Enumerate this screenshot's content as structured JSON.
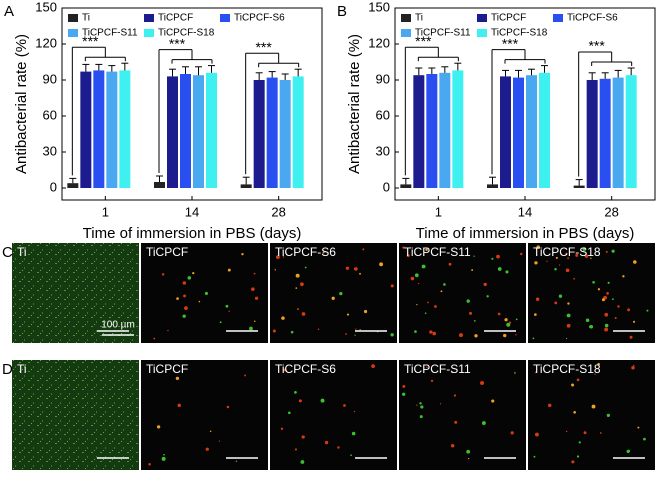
{
  "chart_data": [
    {
      "type": "bar",
      "panel": "A",
      "ylabel": "Antibacterial rate (%)",
      "xlabel": "Time of immersion in PBS (days)",
      "categories": [
        "1",
        "14",
        "28"
      ],
      "ylim": [
        -10,
        150
      ],
      "yticks": [
        0,
        30,
        60,
        90,
        120,
        150
      ],
      "legend": "top",
      "annotations": [
        "***",
        "***",
        "***"
      ],
      "series": [
        {
          "name": "Ti",
          "color": "#222222",
          "values": [
            4,
            5,
            3
          ],
          "errors": [
            4,
            5,
            6
          ]
        },
        {
          "name": "TiCPCF",
          "color": "#1c1c8e",
          "values": [
            97,
            93,
            90
          ],
          "errors": [
            6,
            6,
            6
          ]
        },
        {
          "name": "TiCPCF-S6",
          "color": "#2a4ff0",
          "values": [
            98,
            95,
            92
          ],
          "errors": [
            5,
            6,
            5
          ]
        },
        {
          "name": "TiCPCF-S11",
          "color": "#4aa8f0",
          "values": [
            97,
            94,
            90
          ],
          "errors": [
            5,
            7,
            5
          ]
        },
        {
          "name": "TiCPCF-S18",
          "color": "#3ef0f0",
          "values": [
            98,
            96,
            93
          ],
          "errors": [
            6,
            6,
            6
          ]
        }
      ]
    },
    {
      "type": "bar",
      "panel": "B",
      "ylabel": "Antibacterial rate (%)",
      "xlabel": "Time of immersion in PBS (days)",
      "categories": [
        "1",
        "14",
        "28"
      ],
      "ylim": [
        -10,
        150
      ],
      "yticks": [
        0,
        30,
        60,
        90,
        120,
        150
      ],
      "legend": "top",
      "annotations": [
        "***",
        "***",
        "***"
      ],
      "series": [
        {
          "name": "Ti",
          "color": "#222222",
          "values": [
            3,
            3,
            2
          ],
          "errors": [
            5,
            6,
            5
          ]
        },
        {
          "name": "TiCPCF",
          "color": "#1c1c8e",
          "values": [
            94,
            93,
            90
          ],
          "errors": [
            6,
            5,
            6
          ]
        },
        {
          "name": "TiCPCF-S6",
          "color": "#2a4ff0",
          "values": [
            95,
            92,
            91
          ],
          "errors": [
            5,
            6,
            5
          ]
        },
        {
          "name": "TiCPCF-S11",
          "color": "#4aa8f0",
          "values": [
            96,
            94,
            92
          ],
          "errors": [
            5,
            5,
            6
          ]
        },
        {
          "name": "TiCPCF-S18",
          "color": "#3ef0f0",
          "values": [
            98,
            96,
            94
          ],
          "errors": [
            6,
            6,
            6
          ]
        }
      ]
    }
  ],
  "micrographs": {
    "scale_bar": "100 µm",
    "rows": [
      {
        "panel": "C",
        "tiles": [
          "Ti",
          "TiCPCF",
          "TiCPCF-S6",
          "TiCPCF-S11",
          "TiCPCF-S18"
        ]
      },
      {
        "panel": "D",
        "tiles": [
          "Ti",
          "TiCPCF",
          "TiCPCF-S6",
          "TiCPCF-S11",
          "TiCPCF-S18"
        ]
      }
    ]
  }
}
